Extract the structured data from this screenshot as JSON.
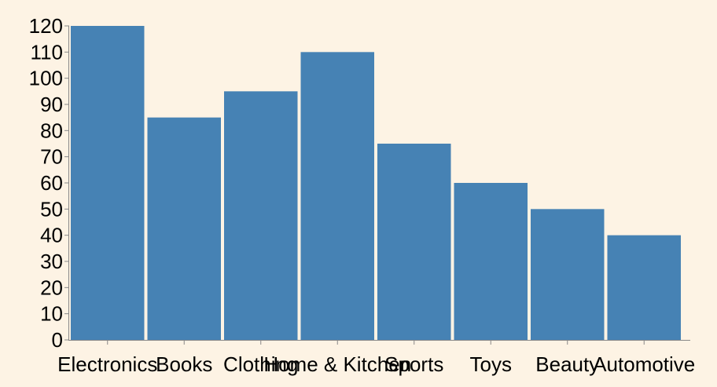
{
  "chart_data": {
    "type": "bar",
    "title": "",
    "xlabel": "",
    "ylabel": "",
    "categories": [
      "Electronics",
      "Books",
      "Clothing",
      "Home & Kitchen",
      "Sports",
      "Toys",
      "Beauty",
      "Automotive"
    ],
    "values": [
      120,
      85,
      95,
      110,
      75,
      60,
      50,
      40
    ],
    "ylim": [
      0,
      120
    ],
    "yticks": [
      0,
      10,
      20,
      30,
      40,
      50,
      60,
      70,
      80,
      90,
      100,
      110,
      120
    ],
    "grid": false,
    "legend": "none",
    "colors": {
      "bar": "#4682b4",
      "axis": "#888888",
      "background": "#fdf3e4"
    }
  }
}
